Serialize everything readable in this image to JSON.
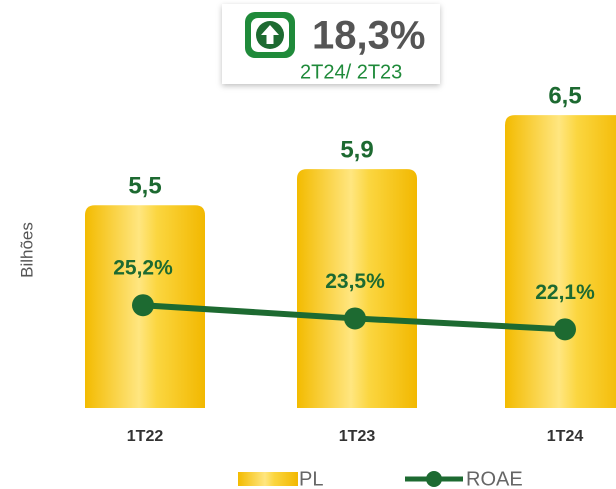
{
  "chart_data": {
    "type": "combo",
    "annotations": {
      "change": "18,3%",
      "period": "2T24/ 2T23"
    },
    "ylabel": "Bilhões",
    "categories": [
      "1T22",
      "1T23",
      "1T24"
    ],
    "series": [
      {
        "name": "PL",
        "type": "bar",
        "color": "#f6c200",
        "values": [
          5.5,
          5.9,
          6.5
        ],
        "value_labels": [
          "5,5",
          "5,9",
          "6,5"
        ]
      },
      {
        "name": "ROAE",
        "type": "line",
        "axis": "y2",
        "color": "#1d6a31",
        "values": [
          25.2,
          23.5,
          22.1
        ],
        "value_labels": [
          "25,2%",
          "23,5%",
          "22,1%"
        ]
      }
    ],
    "ylim": [
      3.25,
      7
    ],
    "y2lim": [
      12,
      55.4
    ]
  }
}
